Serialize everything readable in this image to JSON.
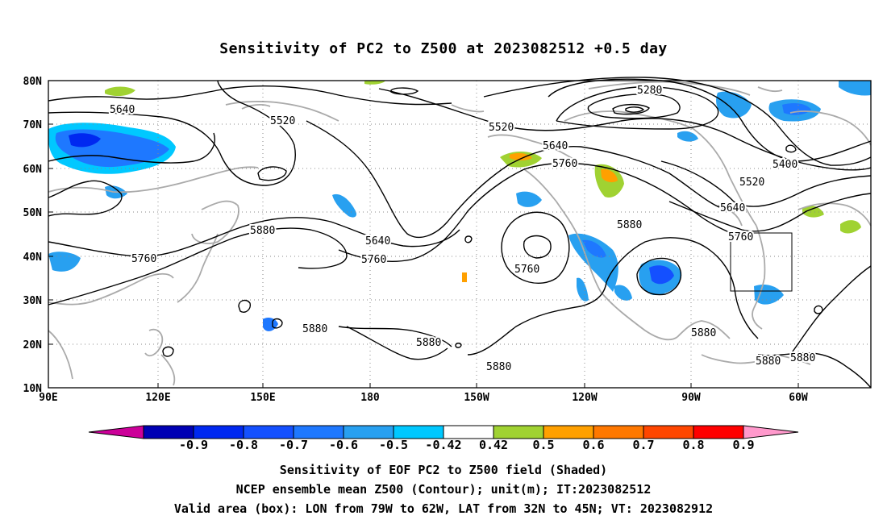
{
  "title": "Sensitivity of PC2 to Z500 at 2023082512 +0.5 day",
  "lat_labels": [
    "80N",
    "70N",
    "60N",
    "50N",
    "40N",
    "30N",
    "20N",
    "10N"
  ],
  "lon_labels": [
    "90E",
    "120E",
    "150E",
    "180",
    "150W",
    "120W",
    "90W",
    "60W"
  ],
  "contour_labels": {
    "c5280": "5280",
    "c5400": "5400",
    "c5520a": "5520",
    "c5520b": "5520",
    "c5520c": "5520",
    "c5640a": "5640",
    "c5640b": "5640",
    "c5640c": "5640",
    "c5640d": "5640",
    "c5760a": "5760",
    "c5760b": "5760",
    "c5760c": "5760",
    "c5760d": "5760",
    "c5760e": "5760",
    "c5880a": "5880",
    "c5880b": "5880",
    "c5880c": "5880",
    "c5880d": "5880",
    "c5880e": "5880",
    "c5880f": "5880",
    "c5880g": "5880",
    "c5880h": "5880"
  },
  "colorbar": {
    "labels": [
      "-0.9",
      "-0.8",
      "-0.7",
      "-0.6",
      "-0.5",
      "-0.42",
      "0.42",
      "0.5",
      "0.6",
      "0.7",
      "0.8",
      "0.9"
    ],
    "colors": [
      "#0000b4",
      "#0028f0",
      "#1450ff",
      "#1e78ff",
      "#28a0f0",
      "#00c8ff",
      "#ffffff",
      "#a0d232",
      "#ffa000",
      "#ff7800",
      "#ff4600",
      "#ff0000"
    ],
    "low_color": "#cc0099",
    "high_color": "#ff99cc"
  },
  "captions": {
    "line1": "Sensitivity of EOF PC2 to Z500 field (Shaded)",
    "line2": "NCEP ensemble mean Z500 (Contour); unit(m); IT:2023082512",
    "line3": "Valid area (box): LON from 79W to 62W, LAT from 32N to 45N; VT: 2023082912"
  },
  "map": {
    "lon_range": [
      "90E",
      "48W"
    ],
    "lat_range": [
      "10N",
      "80N"
    ],
    "valid_box": {
      "lon_west": "79W",
      "lon_east": "62W",
      "lat_south": "32N",
      "lat_north": "45N"
    },
    "contour_color": "#000000",
    "coast_color": "#aaaaaa",
    "grid_style": "dotted"
  }
}
